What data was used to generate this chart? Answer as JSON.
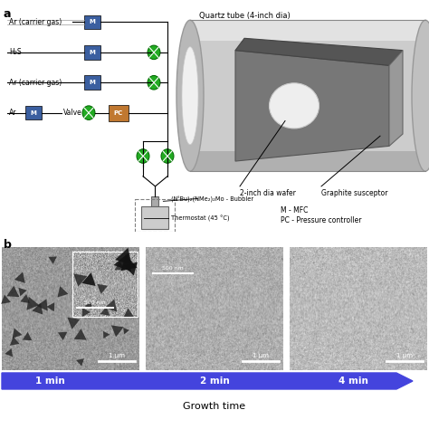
{
  "panel_a_label": "a",
  "panel_b_label": "b",
  "title_quartz": "Quartz tube (4-inch dia)",
  "label_wafer": "2-inch dia wafer",
  "label_susceptor": "Graphite susceptor",
  "label_mfc": "M - MFC",
  "label_pc": "PC - Pressure controller",
  "label_bubbler": "(NᵗBu)₂(NMe₂)₂Mo - Bubbler",
  "label_thermostat": "Thermostat (45 °C)",
  "gas_labels": [
    "Ar (carrier gas)",
    "H₂S",
    "Ar (carrier gas)",
    "Ar"
  ],
  "valve_label": "Valve",
  "time_labels": [
    "1 min",
    "2 min",
    "4 min"
  ],
  "growth_time_label": "Growth time",
  "scale_bar_500nm": "500 nm",
  "scale_bar_1um": "1 μm",
  "arrow_color": "#4444DD",
  "mfc_color": "#3B5FA0",
  "pc_color": "#C07830",
  "valve_circle_color": "#22AA22",
  "bg_color": "#FFFFFF",
  "sem_color1": "#808080",
  "sem_color2": "#909090",
  "sem_color3": "#9A9A9A",
  "line_color": "#888888",
  "tube_fill": "#D0D0D0",
  "tube_gradient_top": "#E8E8E8",
  "tube_gradient_bot": "#B0B0B0",
  "susceptor_fill": "#666666",
  "susceptor_face": "#888888",
  "wafer_fill": "#DDDDDD"
}
